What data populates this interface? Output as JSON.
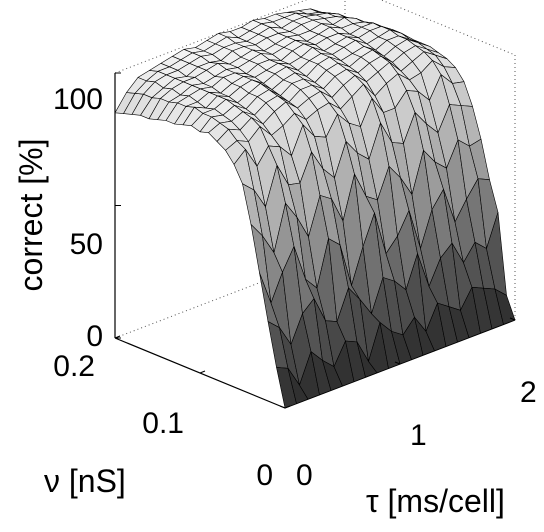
{
  "chart_data": {
    "type": "surface3d",
    "title": "",
    "xlabel": "τ [ms/cell]",
    "ylabel": "ν [nS]",
    "zlabel": "correct [%]",
    "xlim": [
      0,
      2
    ],
    "ylim": [
      0,
      0.2
    ],
    "zlim": [
      0,
      100
    ],
    "xticks": [
      "0",
      "1",
      "2"
    ],
    "yticks": [
      "0",
      "0.1",
      "0.2"
    ],
    "zticks": [
      "0",
      "50",
      "100"
    ],
    "grid": false,
    "colormap": "gray",
    "x": [
      0.0,
      0.1,
      0.2,
      0.3,
      0.4,
      0.5,
      0.6,
      0.7,
      0.8,
      0.9,
      1.0,
      1.1,
      1.2,
      1.3,
      1.4,
      1.5,
      1.6,
      1.7,
      1.8,
      1.9,
      2.0
    ],
    "y": [
      0.0,
      0.01,
      0.02,
      0.03,
      0.04,
      0.05,
      0.06,
      0.07,
      0.08,
      0.09,
      0.1,
      0.11,
      0.12,
      0.13,
      0.14,
      0.15,
      0.16,
      0.17,
      0.18,
      0.19,
      0.2
    ],
    "z": [
      [
        0,
        0,
        0,
        0,
        0,
        0,
        0,
        0,
        0,
        0,
        0,
        0,
        0,
        0,
        0,
        0,
        0,
        0,
        0,
        0,
        0
      ],
      [
        14,
        12,
        4,
        15,
        10,
        6,
        14,
        12,
        3,
        16,
        11,
        8,
        13,
        6,
        15,
        12,
        9,
        16,
        14,
        12,
        8
      ],
      [
        30,
        26,
        18,
        28,
        32,
        22,
        20,
        31,
        25,
        18,
        30,
        27,
        22,
        34,
        20,
        29,
        33,
        24,
        30,
        26,
        38
      ],
      [
        47,
        34,
        44,
        52,
        38,
        33,
        50,
        46,
        29,
        42,
        53,
        36,
        41,
        49,
        33,
        46,
        52,
        38,
        45,
        51,
        49
      ],
      [
        64,
        58,
        50,
        67,
        60,
        51,
        65,
        62,
        52,
        68,
        58,
        55,
        66,
        60,
        52,
        67,
        61,
        57,
        66,
        62,
        63
      ],
      [
        78,
        74,
        66,
        80,
        71,
        70,
        80,
        72,
        67,
        79,
        73,
        69,
        81,
        72,
        70,
        80,
        74,
        69,
        78,
        76,
        74
      ],
      [
        84,
        88,
        80,
        86,
        84,
        79,
        89,
        83,
        81,
        88,
        83,
        80,
        89,
        82,
        82,
        87,
        85,
        80,
        88,
        83,
        82
      ],
      [
        88,
        90,
        88,
        92,
        87,
        89,
        92,
        88,
        90,
        91,
        87,
        90,
        93,
        87,
        90,
        92,
        88,
        89,
        92,
        88,
        86
      ],
      [
        90,
        93,
        91,
        94,
        90,
        93,
        95,
        91,
        93,
        94,
        90,
        93,
        95,
        91,
        93,
        95,
        90,
        92,
        94,
        91,
        88
      ],
      [
        92,
        94,
        93,
        95,
        92,
        95,
        96,
        92,
        95,
        95,
        92,
        95,
        96,
        93,
        95,
        96,
        92,
        94,
        95,
        92,
        89
      ],
      [
        91,
        95,
        94,
        96,
        93,
        96,
        97,
        93,
        96,
        96,
        93,
        96,
        97,
        94,
        96,
        97,
        93,
        95,
        96,
        93,
        90
      ],
      [
        92,
        95,
        95,
        97,
        94,
        96,
        98,
        94,
        96,
        97,
        94,
        97,
        98,
        95,
        96,
        97,
        94,
        96,
        96,
        93,
        90
      ],
      [
        91,
        96,
        94,
        97,
        95,
        97,
        98,
        95,
        97,
        98,
        95,
        97,
        98,
        96,
        97,
        98,
        95,
        96,
        97,
        94,
        90
      ],
      [
        90,
        95,
        95,
        97,
        95,
        97,
        98,
        96,
        97,
        98,
        96,
        97,
        99,
        96,
        97,
        98,
        96,
        97,
        97,
        94,
        89
      ],
      [
        90,
        95,
        96,
        97,
        96,
        98,
        98,
        96,
        98,
        98,
        96,
        98,
        99,
        97,
        98,
        98,
        96,
        97,
        97,
        93,
        88
      ],
      [
        89,
        94,
        95,
        97,
        96,
        97,
        98,
        97,
        98,
        99,
        97,
        98,
        99,
        97,
        98,
        99,
        97,
        97,
        96,
        93,
        87
      ],
      [
        88,
        94,
        96,
        97,
        97,
        98,
        99,
        97,
        98,
        99,
        97,
        98,
        99,
        98,
        98,
        99,
        97,
        98,
        96,
        92,
        86
      ],
      [
        88,
        93,
        95,
        97,
        96,
        98,
        98,
        97,
        99,
        99,
        98,
        99,
        99,
        98,
        99,
        99,
        98,
        97,
        95,
        92,
        85
      ],
      [
        87,
        93,
        96,
        97,
        97,
        98,
        99,
        98,
        99,
        99,
        98,
        99,
        100,
        98,
        99,
        99,
        98,
        97,
        95,
        91,
        84
      ],
      [
        86,
        92,
        95,
        97,
        97,
        98,
        99,
        98,
        99,
        100,
        98,
        99,
        100,
        99,
        99,
        99,
        97,
        96,
        94,
        90,
        83
      ],
      [
        85,
        91,
        95,
        96,
        97,
        98,
        99,
        98,
        99,
        100,
        99,
        99,
        100,
        99,
        99,
        98,
        97,
        96,
        93,
        89,
        82
      ]
    ]
  }
}
